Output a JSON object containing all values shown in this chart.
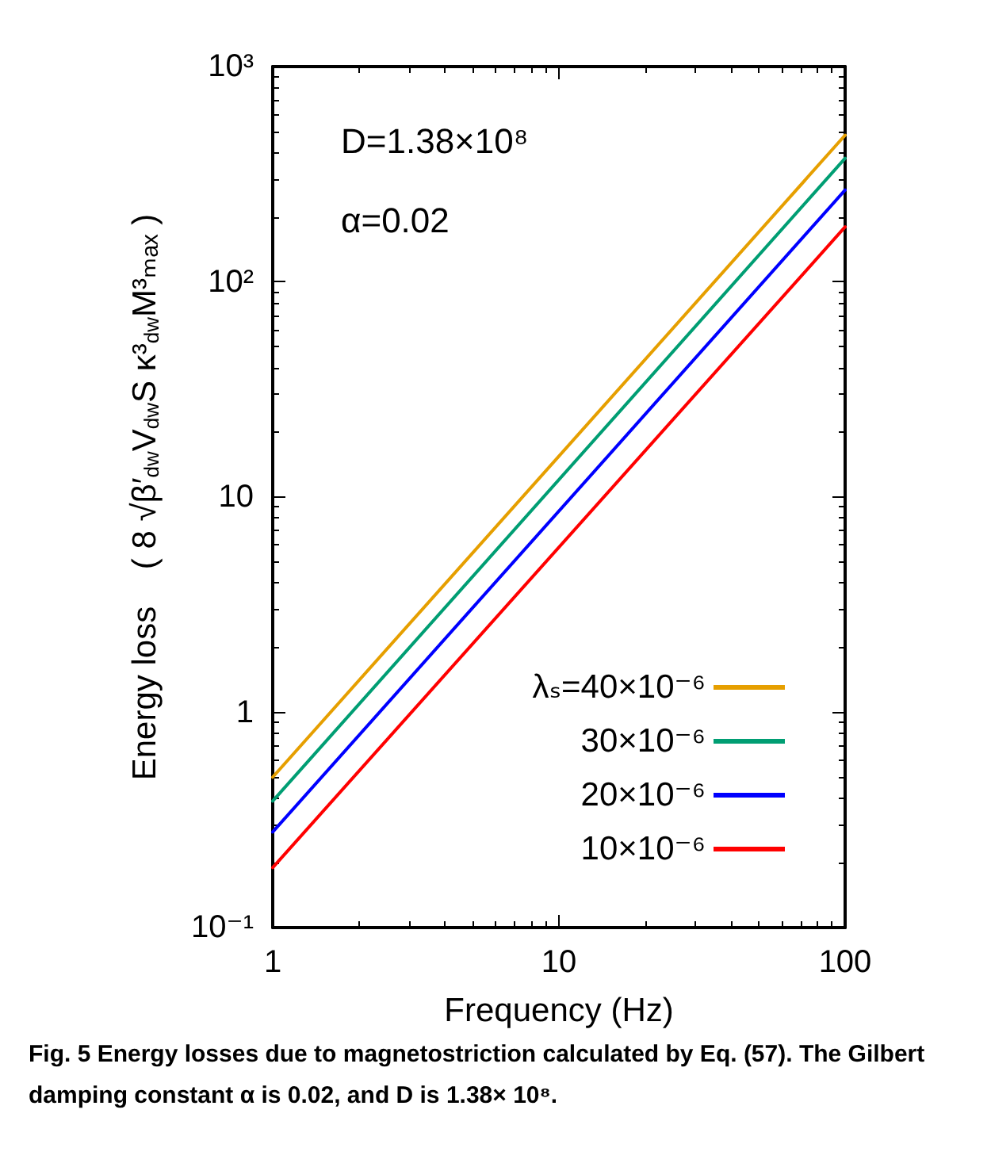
{
  "chart_data": {
    "type": "line",
    "annotations": [
      "D=1.38×10⁸",
      "α=0.02",
      "Fig. 5 Energy losses due to magnetostriction calculated by Eq. (57). The Gilbert damping constant α is 0.02, and D is 1.38× 10⁸."
    ],
    "xlabel": "Frequency (Hz)",
    "ylabel": "Energy loss    ( 8 √β′$_{dw}$V$_{dw}$S κ³$_{dw}$M³ₘₐₓ )",
    "x": [
      1,
      100
    ],
    "series": [
      {
        "name": "λₛ=40×10⁻⁶",
        "color": "#e69f00",
        "values": [
          0.5,
          480
        ]
      },
      {
        "name": "30×10⁻⁶",
        "color": "#009e73",
        "values": [
          0.387,
          375
        ]
      },
      {
        "name": "20×10⁻⁶",
        "color": "#0000ff",
        "values": [
          0.278,
          267
        ]
      },
      {
        "name": "10×10⁻⁶",
        "color": "#ff0000",
        "values": [
          0.19,
          180
        ]
      }
    ],
    "log": "xy",
    "xlim": [
      1,
      100
    ],
    "xticks": [
      1,
      10,
      100
    ],
    "ylim": [
      0.1,
      1000
    ],
    "yticks": [
      {
        "value": 0.1,
        "label": "10⁻¹"
      },
      1,
      10,
      {
        "value": 100,
        "label": "10²"
      },
      {
        "value": 1000,
        "label": "10³"
      }
    ],
    "grid": false,
    "legend": "bottom right",
    "marker": "none",
    "line_style": "solid"
  }
}
